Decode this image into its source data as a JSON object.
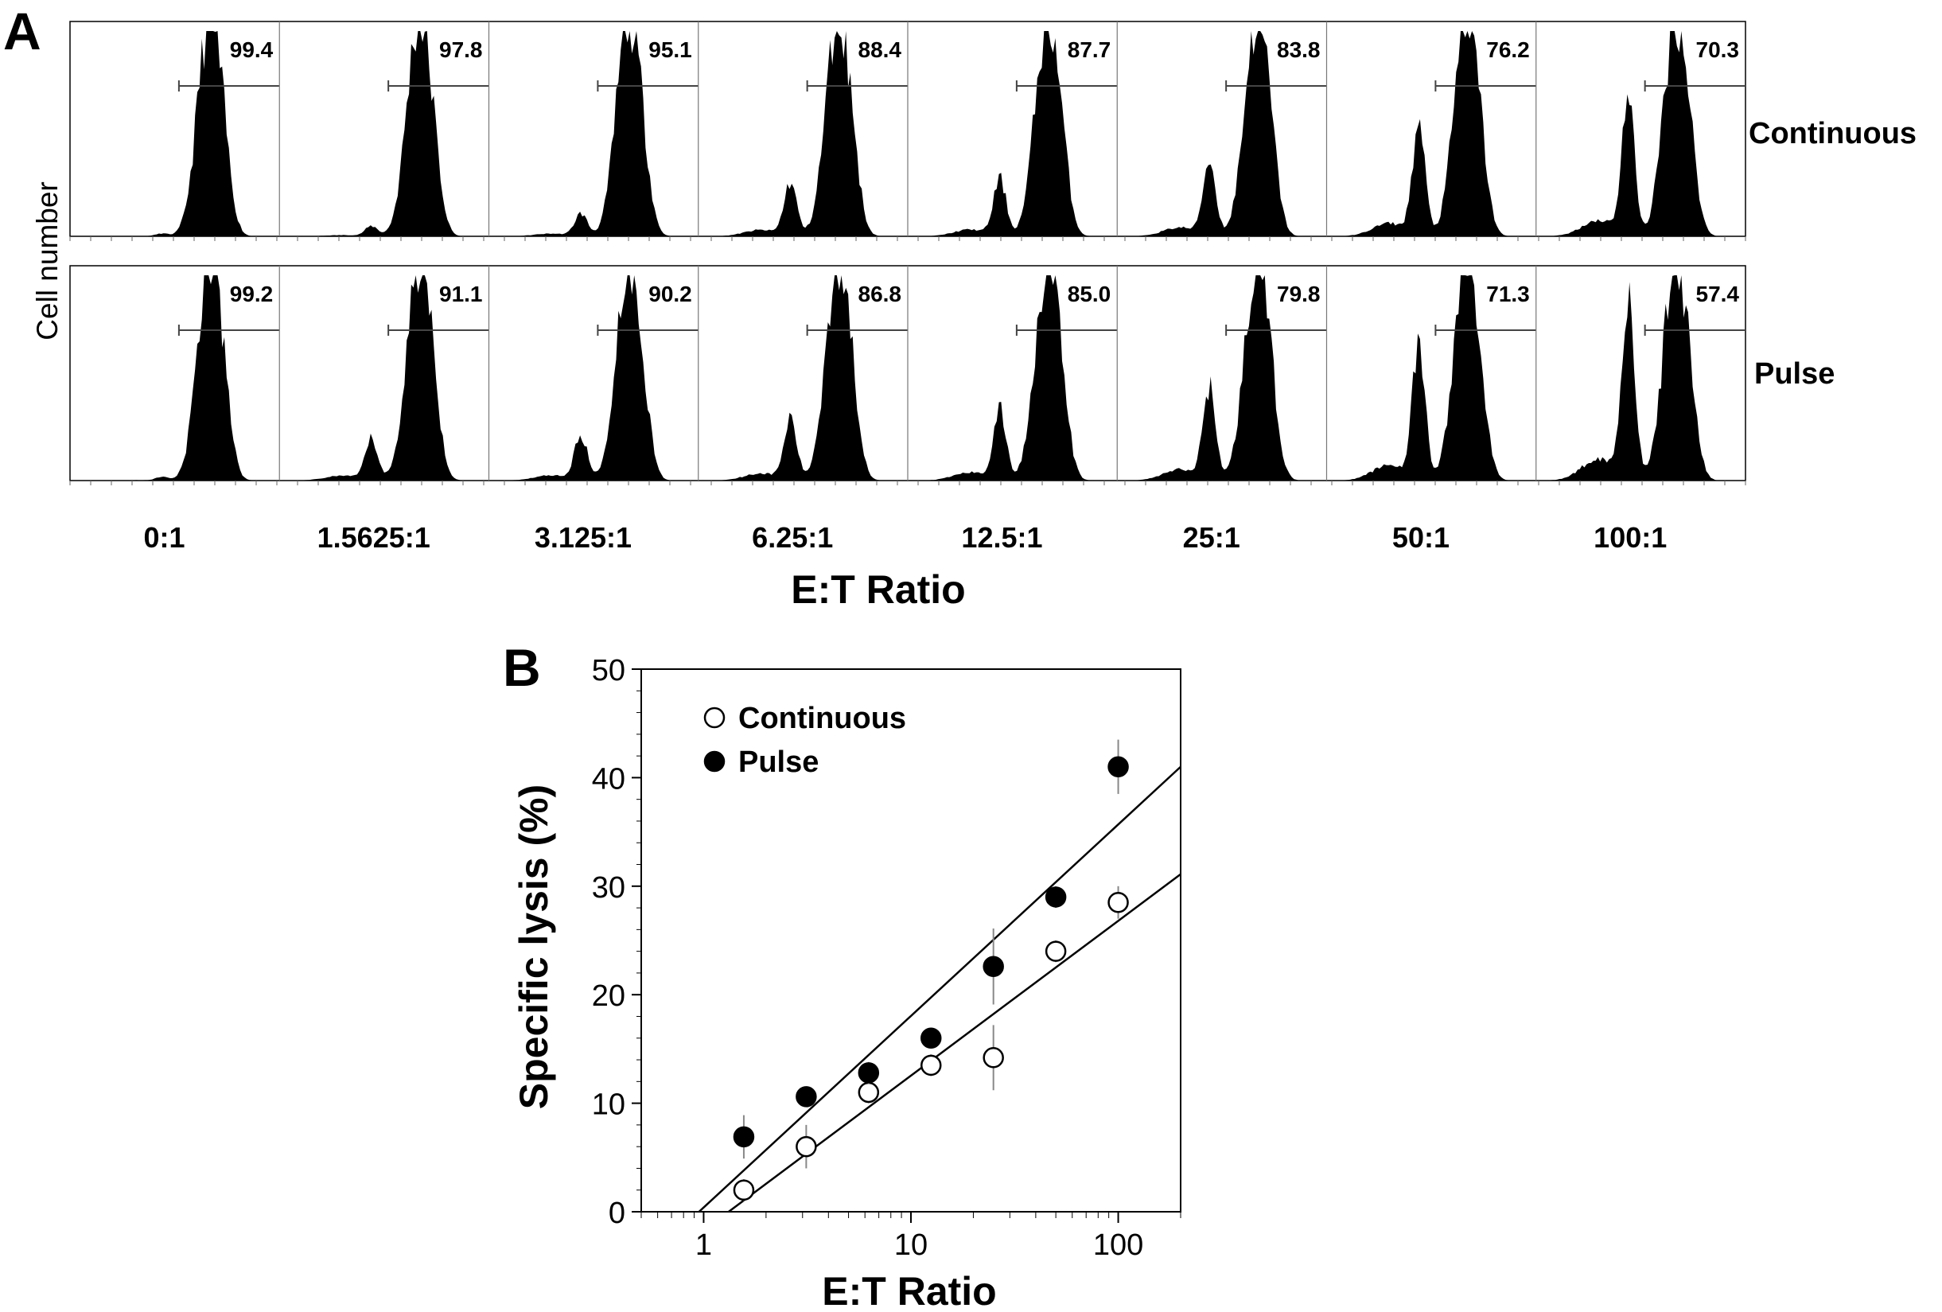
{
  "panel_a": {
    "label": "A",
    "ylabel": "Cell number",
    "xlabel": "E:T Ratio",
    "ratios": [
      "0:1",
      "1.5625:1",
      "3.125:1",
      "6.25:1",
      "12.5:1",
      "25:1",
      "50:1",
      "100:1"
    ],
    "rows": [
      {
        "name": "Continuous",
        "values": [
          "99.4",
          "97.8",
          "95.1",
          "88.4",
          "87.7",
          "83.8",
          "76.2",
          "70.3"
        ]
      },
      {
        "name": "Pulse",
        "values": [
          "99.2",
          "91.1",
          "90.2",
          "86.8",
          "85.0",
          "79.8",
          "71.3",
          "57.4"
        ]
      }
    ]
  },
  "chart_data": {
    "type": "scatter",
    "panel_label": "B",
    "xlabel": "E:T Ratio",
    "ylabel": "Specific lysis (%)",
    "xscale": "log",
    "xlim": [
      0.5,
      200
    ],
    "ylim": [
      0,
      50
    ],
    "xticks": [
      1,
      10,
      100
    ],
    "xtick_labels": [
      "1",
      "10",
      "100"
    ],
    "yticks": [
      0,
      10,
      20,
      30,
      40,
      50
    ],
    "ytick_labels": [
      "0",
      "10",
      "20",
      "30",
      "40",
      "50"
    ],
    "legend_position": "top-left",
    "series": [
      {
        "name": "Continuous",
        "marker": "open-circle",
        "x": [
          1.5625,
          3.125,
          6.25,
          12.5,
          25,
          50,
          100
        ],
        "y": [
          2.0,
          6.0,
          11.0,
          13.5,
          14.2,
          24.0,
          28.5
        ],
        "err": [
          1.0,
          2.0,
          1.0,
          1.0,
          3.0,
          1.0,
          1.5
        ],
        "fit": {
          "x_intercept": 1.32,
          "y_at_200": 31.1
        }
      },
      {
        "name": "Pulse",
        "marker": "filled-circle",
        "x": [
          1.5625,
          3.125,
          6.25,
          12.5,
          25,
          50,
          100
        ],
        "y": [
          6.9,
          10.6,
          12.8,
          16.0,
          22.6,
          29.0,
          41.0
        ],
        "err": [
          2.0,
          0.8,
          1.0,
          0.8,
          3.5,
          1.0,
          2.5
        ],
        "fit": {
          "x_intercept": 0.95,
          "y_at_200": 41.0
        }
      }
    ]
  }
}
